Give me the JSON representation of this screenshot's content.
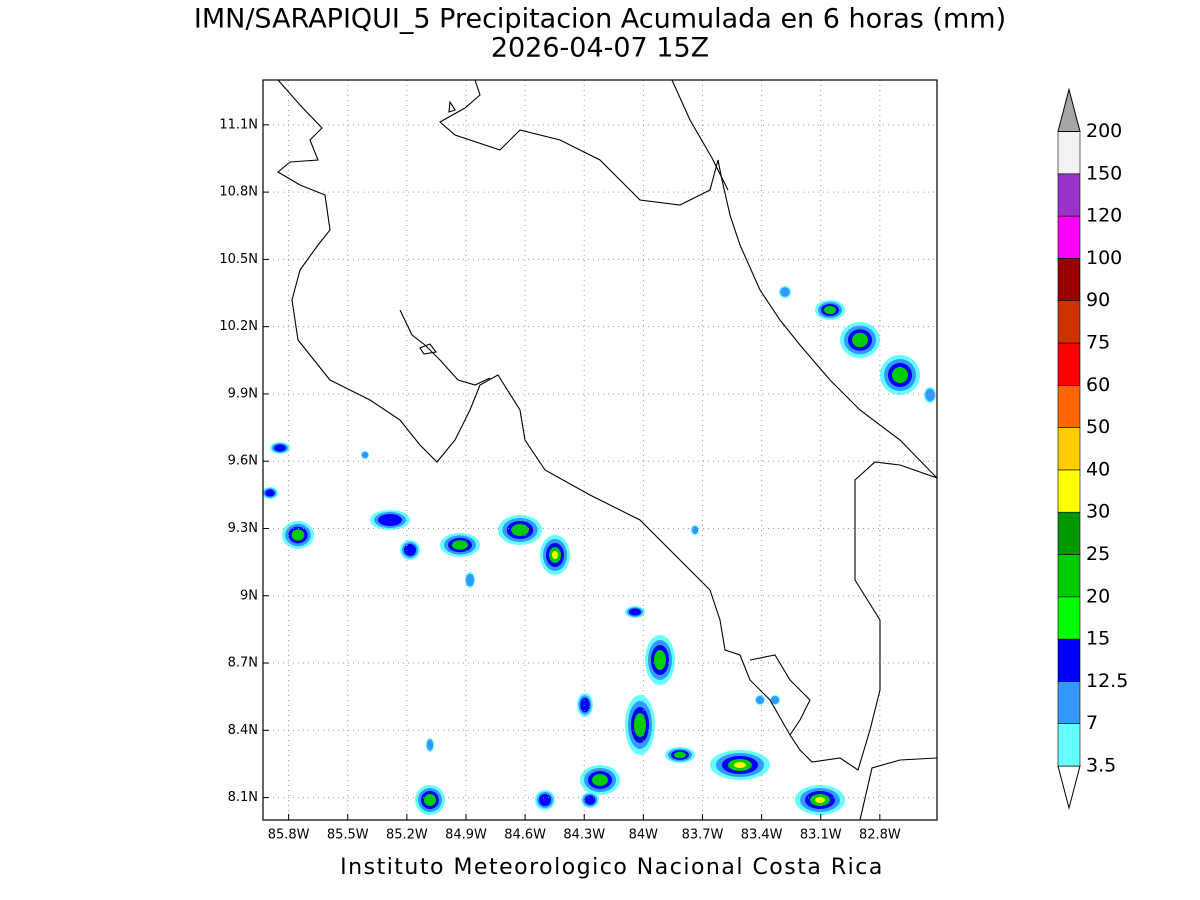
{
  "title": "IMN/SARAPIQUI_5 Precipitacion Acumulada en 6 horas (mm)",
  "subtitle": "2026-04-07 15Z",
  "footer": "Instituto Meteorologico Nacional Costa Rica",
  "map": {
    "lonlim": [
      -85.93,
      -82.51
    ],
    "latlim": [
      8.0,
      11.3
    ],
    "grid": true,
    "lon_ticks": [
      {
        "value": -85.8,
        "label": "85.8W"
      },
      {
        "value": -85.5,
        "label": "85.5W"
      },
      {
        "value": -85.2,
        "label": "85.2W"
      },
      {
        "value": -84.9,
        "label": "84.9W"
      },
      {
        "value": -84.6,
        "label": "84.6W"
      },
      {
        "value": -84.3,
        "label": "84.3W"
      },
      {
        "value": -84.0,
        "label": "84W"
      },
      {
        "value": -83.7,
        "label": "83.7W"
      },
      {
        "value": -83.4,
        "label": "83.4W"
      },
      {
        "value": -83.1,
        "label": "83.1W"
      },
      {
        "value": -82.8,
        "label": "82.8W"
      }
    ],
    "lat_ticks": [
      {
        "value": 8.1,
        "label": "8.1N"
      },
      {
        "value": 8.4,
        "label": "8.4N"
      },
      {
        "value": 8.7,
        "label": "8.7N"
      },
      {
        "value": 9.0,
        "label": "9N"
      },
      {
        "value": 9.3,
        "label": "9.3N"
      },
      {
        "value": 9.6,
        "label": "9.6N"
      },
      {
        "value": 9.9,
        "label": "9.9N"
      },
      {
        "value": 10.2,
        "label": "10.2N"
      },
      {
        "value": 10.5,
        "label": "10.5N"
      },
      {
        "value": 10.8,
        "label": "10.8N"
      },
      {
        "value": 11.1,
        "label": "11.1N"
      }
    ]
  },
  "colorbar": {
    "levels": [
      3.5,
      7,
      12.5,
      15,
      20,
      25,
      30,
      40,
      50,
      60,
      75,
      90,
      100,
      120,
      150,
      200
    ],
    "colors": [
      "#ffffff",
      "#66ffff",
      "#3399ff",
      "#0000ff",
      "#00ff00",
      "#00cc00",
      "#009900",
      "#ffff00",
      "#ffcc00",
      "#ff6600",
      "#ff0000",
      "#cc3300",
      "#990000",
      "#ff00ff",
      "#9933cc",
      "#f2f2f2",
      "#a6a6a6"
    ]
  }
}
